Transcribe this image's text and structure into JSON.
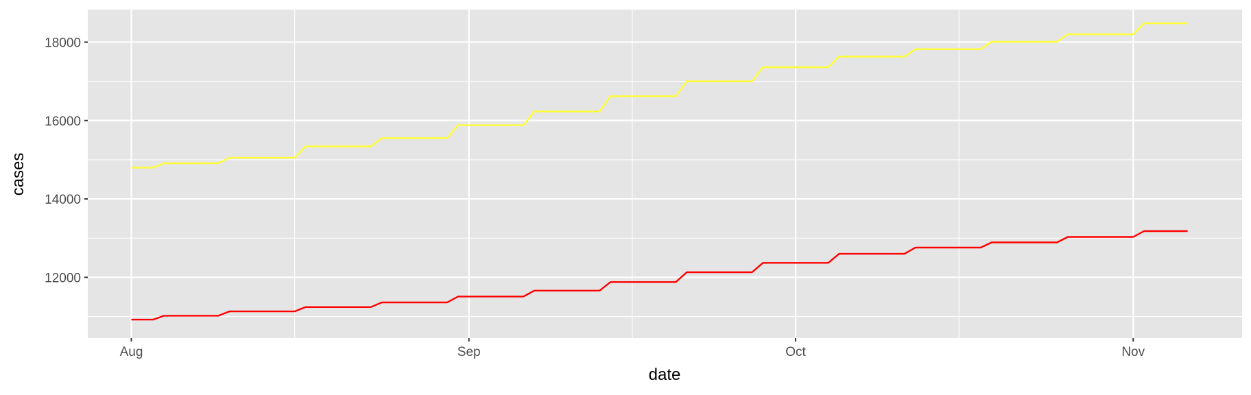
{
  "chart_data": {
    "type": "line",
    "title": "",
    "xlabel": "date",
    "ylabel": "cases",
    "xlim": [
      "2020-07-28",
      "2020-11-11"
    ],
    "ylim": [
      10450,
      18830
    ],
    "x_ticks": [
      {
        "date": "2020-08-01",
        "label": "Aug"
      },
      {
        "date": "2020-09-01",
        "label": "Sep"
      },
      {
        "date": "2020-10-01",
        "label": "Oct"
      },
      {
        "date": "2020-11-01",
        "label": "Nov"
      }
    ],
    "y_ticks": [
      12000,
      14000,
      16000,
      18000
    ],
    "grid": true,
    "background": "#e5e5e5",
    "series": [
      {
        "color": "#ffff33",
        "points": [
          [
            "2020-08-01",
            14800
          ],
          [
            "2020-08-03",
            14800
          ],
          [
            "2020-08-04",
            14910
          ],
          [
            "2020-08-09",
            14910
          ],
          [
            "2020-08-10",
            15050
          ],
          [
            "2020-08-16",
            15050
          ],
          [
            "2020-08-17",
            15340
          ],
          [
            "2020-08-23",
            15340
          ],
          [
            "2020-08-24",
            15550
          ],
          [
            "2020-08-30",
            15550
          ],
          [
            "2020-08-31",
            15880
          ],
          [
            "2020-09-06",
            15880
          ],
          [
            "2020-09-07",
            16230
          ],
          [
            "2020-09-13",
            16230
          ],
          [
            "2020-09-14",
            16620
          ],
          [
            "2020-09-20",
            16620
          ],
          [
            "2020-09-21",
            17000
          ],
          [
            "2020-09-27",
            17000
          ],
          [
            "2020-09-28",
            17360
          ],
          [
            "2020-10-04",
            17360
          ],
          [
            "2020-10-05",
            17630
          ],
          [
            "2020-10-11",
            17630
          ],
          [
            "2020-10-12",
            17820
          ],
          [
            "2020-10-18",
            17820
          ],
          [
            "2020-10-19",
            18010
          ],
          [
            "2020-10-25",
            18010
          ],
          [
            "2020-10-26",
            18200
          ],
          [
            "2020-11-01",
            18200
          ],
          [
            "2020-11-02",
            18480
          ],
          [
            "2020-11-06",
            18480
          ]
        ]
      },
      {
        "color": "#ff0000",
        "points": [
          [
            "2020-08-01",
            10920
          ],
          [
            "2020-08-03",
            10920
          ],
          [
            "2020-08-04",
            11020
          ],
          [
            "2020-08-09",
            11020
          ],
          [
            "2020-08-10",
            11130
          ],
          [
            "2020-08-16",
            11130
          ],
          [
            "2020-08-17",
            11240
          ],
          [
            "2020-08-23",
            11240
          ],
          [
            "2020-08-24",
            11360
          ],
          [
            "2020-08-30",
            11360
          ],
          [
            "2020-08-31",
            11510
          ],
          [
            "2020-09-06",
            11510
          ],
          [
            "2020-09-07",
            11660
          ],
          [
            "2020-09-13",
            11660
          ],
          [
            "2020-09-14",
            11880
          ],
          [
            "2020-09-20",
            11880
          ],
          [
            "2020-09-21",
            12130
          ],
          [
            "2020-09-27",
            12130
          ],
          [
            "2020-09-28",
            12370
          ],
          [
            "2020-10-04",
            12370
          ],
          [
            "2020-10-05",
            12600
          ],
          [
            "2020-10-11",
            12600
          ],
          [
            "2020-10-12",
            12760
          ],
          [
            "2020-10-18",
            12760
          ],
          [
            "2020-10-19",
            12890
          ],
          [
            "2020-10-25",
            12890
          ],
          [
            "2020-10-26",
            13030
          ],
          [
            "2020-11-01",
            13030
          ],
          [
            "2020-11-02",
            13180
          ],
          [
            "2020-11-06",
            13180
          ]
        ]
      }
    ]
  }
}
